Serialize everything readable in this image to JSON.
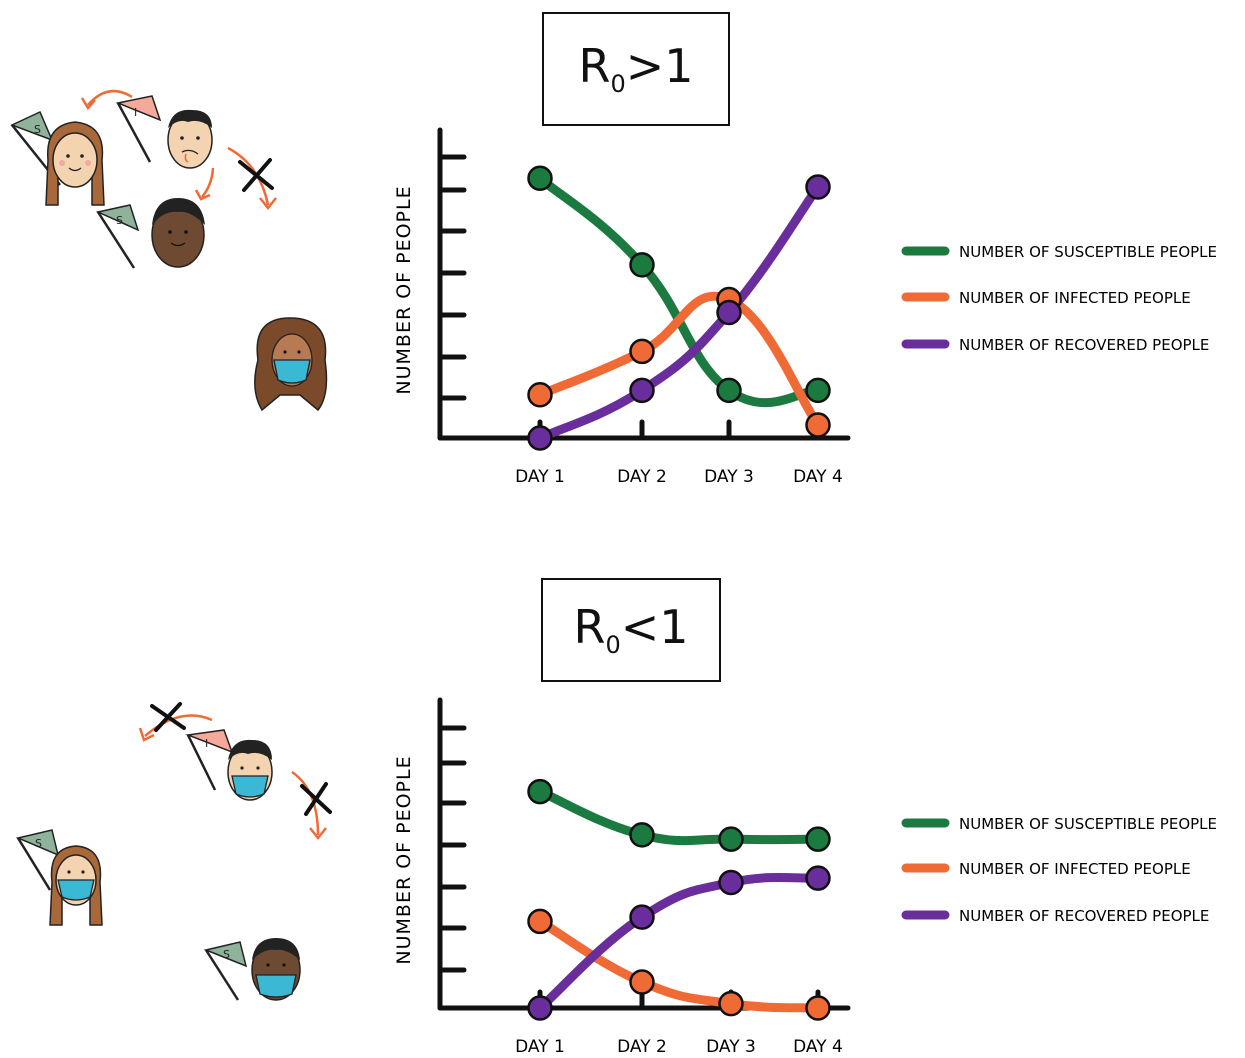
{
  "chart_data": [
    {
      "type": "line",
      "title": "R₀>1",
      "title_main": "R",
      "title_sub": "0",
      "title_rest": ">1",
      "ylabel": "NUMBER OF PEOPLE",
      "categories": [
        "DAY 1",
        "DAY 2",
        "DAY 3",
        "DAY 4"
      ],
      "ylim": [
        0,
        7
      ],
      "series": [
        {
          "name": "NUMBER OF SUSCEPTIBLE PEOPLE",
          "color": "#1a7a40",
          "values": [
            6,
            4,
            1.1,
            1.1
          ]
        },
        {
          "name": "NUMBER OF INFECTED PEOPLE",
          "color": "#f06a35",
          "values": [
            1,
            2,
            3.2,
            0.3
          ]
        },
        {
          "name": "NUMBER OF RECOVERED PEOPLE",
          "color": "#6a2d9c",
          "values": [
            0,
            1.1,
            2.9,
            5.8
          ]
        }
      ]
    },
    {
      "type": "line",
      "title": "R₀<1",
      "title_main": "R",
      "title_sub": "0",
      "title_rest": "<1",
      "ylabel": "NUMBER OF PEOPLE",
      "categories": [
        "DAY 1",
        "DAY 2",
        "DAY 3",
        "DAY 4"
      ],
      "ylim": [
        0,
        7
      ],
      "series": [
        {
          "name": "NUMBER OF SUSCEPTIBLE PEOPLE",
          "color": "#1a7a40",
          "values": [
            5,
            4,
            3.9,
            3.9
          ]
        },
        {
          "name": "NUMBER OF INFECTED PEOPLE",
          "color": "#f06a35",
          "values": [
            2,
            0.6,
            0.1,
            0
          ]
        },
        {
          "name": "NUMBER OF RECOVERED PEOPLE",
          "color": "#6a2d9c",
          "values": [
            0,
            2.1,
            2.9,
            3.0
          ]
        }
      ]
    }
  ],
  "illustrations": [
    {
      "flags": [
        "S",
        "I",
        "S"
      ],
      "people": [
        "person-braids",
        "person-sick",
        "person-dark"
      ],
      "masked": [
        "person-curly"
      ]
    },
    {
      "flags": [
        "I",
        "S",
        "S"
      ],
      "people": [],
      "masked": [
        "person-sick-masked",
        "person-braids-masked",
        "person-dark-masked"
      ]
    }
  ],
  "colors": {
    "arrow": "#f06a35",
    "flag_s": "#8fb29a",
    "flag_i": "#f4a99a",
    "mask": "#3bb8d4",
    "skin_light": "#f3d3b0",
    "skin_dark": "#6e4a33"
  }
}
